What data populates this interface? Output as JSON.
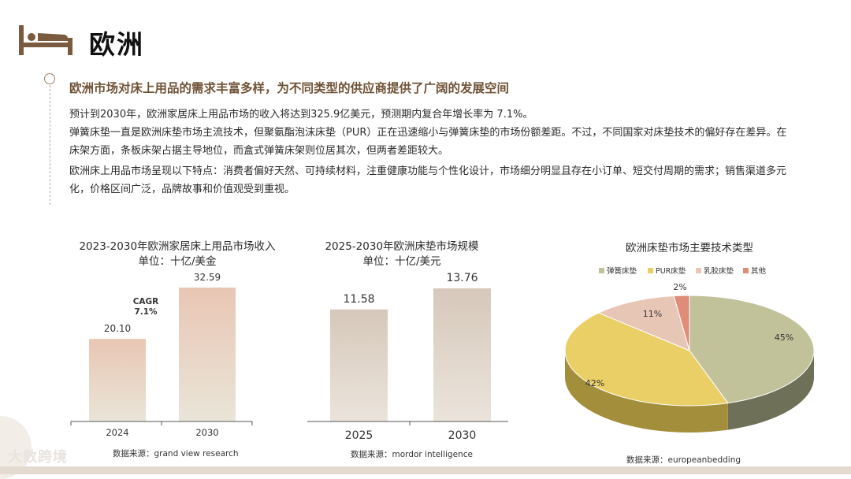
{
  "page": {
    "title": "欧洲",
    "headline": "欧洲市场对床上用品的需求丰富多样，为不同类型的供应商提供了广阔的发展空间",
    "paragraphs": [
      "预计到2030年，欧洲家居床上用品市场的收入将达到325.9亿美元，预测期内复合年增长率为 7.1%。",
      "弹簧床垫一直是欧洲床垫市场主流技术，但聚氨酯泡沫床垫（PUR）正在迅速缩小与弹簧床垫的市场份额差距。不过，不同国家对床垫技术的偏好存在差异。在床架方面，条板床架占据主导地位，而盒式弹簧床架则位居其次，但两者差距较大。",
      "欧洲床上用品市场呈现以下特点：消费者偏好天然、可持续材料，注重健康功能与个性化设计，市场细分明显且存在小订单、短交付周期的需求；销售渠道多元化，价格区间广泛，品牌故事和价值观受到重视。"
    ],
    "footer_logo": "大数跨境"
  },
  "chart_data": [
    {
      "type": "bar",
      "title": "2023-2030年欧洲家居床上用品市场收入",
      "subtitle": "单位：十亿/美金",
      "categories": [
        "2024",
        "2030"
      ],
      "values": [
        20.1,
        32.59
      ],
      "value_labels": [
        "20.10",
        "32.59"
      ],
      "annotation": "CAGR\n7.1%",
      "annotation_line1": "CAGR",
      "annotation_line2": "7.1%",
      "source": "数据来源：grand view research",
      "colors": {
        "top": "#e9c6b4",
        "bottom": "#e9e5d8"
      }
    },
    {
      "type": "bar",
      "title": "2025-2030年欧洲床垫市场规模",
      "subtitle": "单位：十亿/美元",
      "categories": [
        "2025",
        "2030"
      ],
      "values": [
        11.58,
        13.76
      ],
      "value_labels": [
        "11.58",
        "13.76"
      ],
      "source": "数据来源：mordor intelligence",
      "colors": {
        "top": "#d6c8ba",
        "bottom": "#ebe4dc"
      }
    },
    {
      "type": "pie",
      "title": "欧洲床垫市场主要技术类型",
      "categories": [
        "弹簧床垫",
        "PUR床垫",
        "乳胶床垫",
        "其他"
      ],
      "values": [
        45,
        42,
        11,
        2
      ],
      "value_labels": [
        "45%",
        "42%",
        "11%",
        "2%"
      ],
      "colors": [
        "#c1c29a",
        "#e9cf66",
        "#e8c6b6",
        "#df8c78"
      ],
      "source": "数据来源：europeanbedding"
    }
  ]
}
